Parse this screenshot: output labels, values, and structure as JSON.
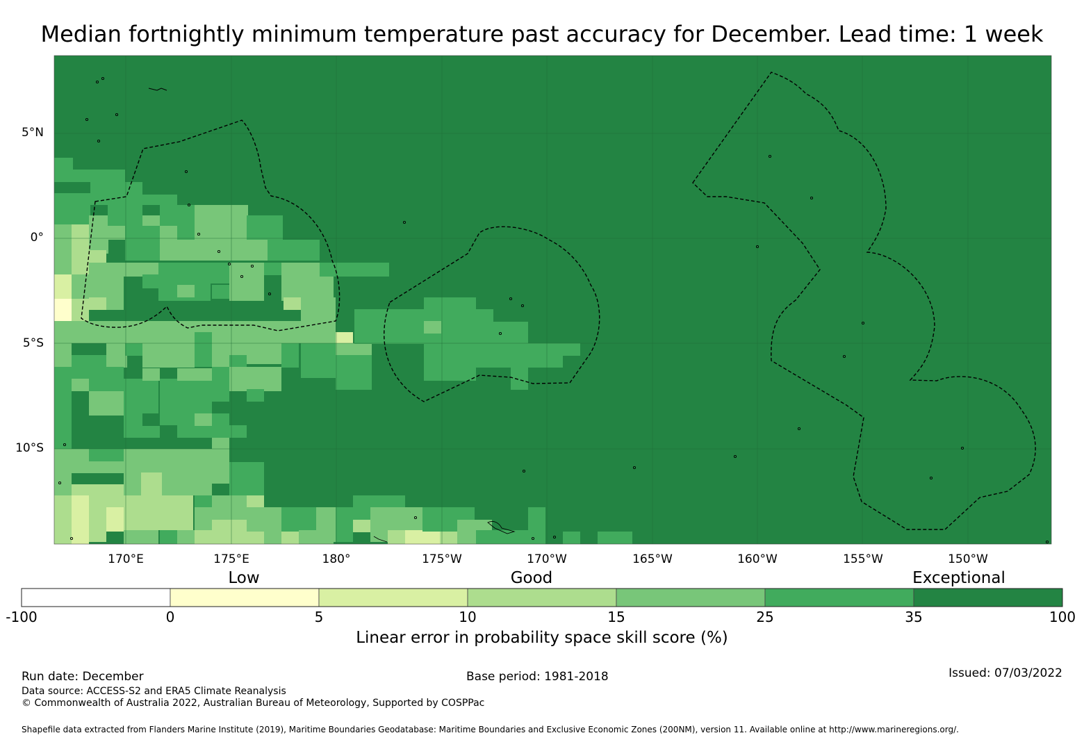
{
  "title": "Median fortnightly minimum temperature past accuracy for December. Lead time: 1 week",
  "map": {
    "lat_labels": [
      "5°N",
      "0°",
      "5°S",
      "10°S"
    ],
    "lon_labels": [
      "170°E",
      "175°E",
      "180°",
      "175°W",
      "170°W",
      "165°W",
      "160°W",
      "155°W",
      "150°W"
    ],
    "colors": {
      "land": "#ffffff",
      "c0": "#ffffcc",
      "c5": "#d9f0a3",
      "c10": "#addd8e",
      "c15": "#78c679",
      "c25": "#41ab5d",
      "c35": "#238443",
      "grid": "#1f6b37",
      "boundary": "#000000"
    }
  },
  "colorbar": {
    "category_labels": [
      "Low",
      "Good",
      "Exceptional"
    ],
    "ticks": [
      "-100",
      "0",
      "5",
      "10",
      "15",
      "25",
      "35",
      "100"
    ],
    "colors": [
      "#ffffff",
      "#ffffcc",
      "#d9f0a3",
      "#addd8e",
      "#78c679",
      "#41ab5d",
      "#238443"
    ],
    "axis_label": "Linear error in probability space skill score (%)"
  },
  "footer": {
    "run_date": "Run date: December",
    "base_period": "Base period: 1981-2018",
    "issued": "Issued: 07/03/2022",
    "data_source": "Data source: ACCESS-S2 and ERA5 Climate Reanalysis",
    "copyright": "© Commonwealth of Australia 2022, Australian Bureau of Meteorology, Supported by COSPPac",
    "shapefile": "Shapefile data extracted from Flanders Marine Institute (2019), Maritime Boundaries Geodatabase: Maritime Boundaries and Exclusive Economic Zones (200NM), version 11. Available online at http://www.marineregions.org/."
  }
}
